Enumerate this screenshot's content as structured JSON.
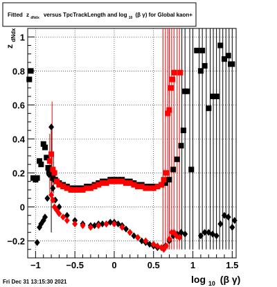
{
  "title_box": {
    "prefix": "Fitted",
    "z": "z",
    "z_sub": "dNdx",
    "mid": "versus TpcTrackLength and log",
    "log_sub": "10",
    "tail": "(β γ) for Global kaon+"
  },
  "footer": {
    "timestamp": "Fri Dec 31 13:15:30 2021"
  },
  "chart_data": {
    "type": "scatter",
    "xlim": [
      -1.1,
      1.55
    ],
    "ylim": [
      -0.3,
      1.05
    ],
    "x_ticks": [
      -1,
      -0.5,
      0,
      0.5,
      1,
      1.5
    ],
    "x_tick_labels": [
      "−1",
      "−0.5",
      "0",
      "0.5",
      "1",
      "1.5"
    ],
    "y_ticks": [
      -0.2,
      0,
      0.2,
      0.4,
      0.6,
      0.8,
      1
    ],
    "y_tick_labels": [
      "−0.2",
      "0",
      "0.2",
      "0.4",
      "0.6",
      "0.8",
      "1"
    ],
    "xlabel": {
      "main": "log",
      "sub": "10",
      "rest": "(β γ)"
    },
    "ylabel": {
      "main": "z",
      "sub": "dNdx"
    },
    "grid": true,
    "colors": {
      "black": "#000000",
      "red": "#ff0000"
    },
    "series": [
      {
        "marker": "square",
        "color": "black",
        "points": [
          [
            -1.08,
            0.75
          ],
          [
            -1.06,
            0.8
          ],
          [
            -1.03,
            0.17
          ],
          [
            -1.0,
            0.16
          ],
          [
            -0.98,
            0.17
          ],
          [
            -0.95,
            0.27
          ],
          [
            -0.93,
            0.25
          ],
          [
            -0.9,
            0.37
          ],
          [
            -0.88,
            0.35
          ],
          [
            -0.86,
            0.29
          ],
          [
            -0.84,
            0.23
          ],
          [
            -0.83,
            0.21
          ],
          [
            -0.82,
            0.2
          ],
          [
            -0.81,
            0.2
          ],
          [
            -0.79,
            0.2
          ],
          [
            -0.78,
            0.17
          ],
          [
            -0.75,
            0.16
          ],
          [
            -0.73,
            0.15
          ],
          [
            -0.7,
            0.14
          ],
          [
            -0.65,
            0.13
          ],
          [
            -0.6,
            0.12
          ],
          [
            -0.55,
            0.11
          ],
          [
            -0.5,
            0.11
          ],
          [
            -0.45,
            0.11
          ],
          [
            -0.4,
            0.11
          ],
          [
            -0.35,
            0.12
          ],
          [
            -0.3,
            0.12
          ],
          [
            -0.25,
            0.13
          ],
          [
            -0.2,
            0.14
          ],
          [
            -0.15,
            0.15
          ],
          [
            -0.1,
            0.15
          ],
          [
            -0.05,
            0.16
          ],
          [
            0.0,
            0.16
          ],
          [
            0.05,
            0.16
          ],
          [
            0.1,
            0.16
          ],
          [
            0.15,
            0.15
          ],
          [
            0.2,
            0.15
          ],
          [
            0.25,
            0.14
          ],
          [
            0.3,
            0.13
          ],
          [
            0.35,
            0.13
          ],
          [
            0.4,
            0.12
          ],
          [
            0.45,
            0.12
          ],
          [
            0.5,
            0.12
          ],
          [
            0.55,
            0.12
          ],
          [
            0.6,
            0.13
          ],
          [
            0.65,
            0.14
          ],
          [
            0.7,
            0.16
          ],
          [
            0.75,
            0.22
          ],
          [
            0.8,
            0.28
          ],
          [
            0.85,
            0.36
          ],
          [
            0.88,
            0.45
          ],
          [
            0.9,
            0.68
          ],
          [
            0.93,
            0.68
          ],
          [
            0.98,
            0.22
          ],
          [
            1.05,
            0.92
          ],
          [
            1.1,
            0.8
          ],
          [
            1.12,
            0.92
          ],
          [
            1.15,
            0.83
          ],
          [
            1.2,
            0.58
          ],
          [
            1.25,
            0.65
          ],
          [
            1.3,
            0.65
          ],
          [
            1.35,
            0.95
          ],
          [
            1.4,
            0.87
          ],
          [
            1.45,
            0.89
          ],
          [
            1.48,
            0.84
          ],
          [
            1.5,
            0.84
          ]
        ]
      },
      {
        "marker": "diamond",
        "color": "black",
        "points": [
          [
            -0.98,
            -0.21
          ],
          [
            -0.95,
            -0.12
          ],
          [
            -0.93,
            -0.1
          ],
          [
            -0.9,
            -0.08
          ],
          [
            -0.88,
            -0.06
          ],
          [
            -0.85,
            0.05
          ],
          [
            -0.83,
            0.19
          ],
          [
            -0.8,
            0.47
          ],
          [
            -0.78,
            0.11
          ],
          [
            -0.75,
            0.04
          ],
          [
            -0.7,
            0.0
          ],
          [
            -0.6,
            -0.05
          ],
          [
            -0.5,
            -0.08
          ],
          [
            -0.4,
            -0.1
          ],
          [
            -0.3,
            -0.11
          ],
          [
            -0.25,
            -0.11
          ],
          [
            -0.2,
            -0.1
          ],
          [
            -0.15,
            -0.1
          ],
          [
            -0.1,
            -0.1
          ],
          [
            -0.05,
            -0.09
          ],
          [
            0.0,
            -0.09
          ],
          [
            0.05,
            -0.1
          ],
          [
            0.1,
            -0.11
          ],
          [
            0.15,
            -0.13
          ],
          [
            0.2,
            -0.15
          ],
          [
            0.25,
            -0.17
          ],
          [
            0.3,
            -0.18
          ],
          [
            0.35,
            -0.2
          ],
          [
            0.4,
            -0.21
          ],
          [
            0.45,
            -0.22
          ],
          [
            0.5,
            -0.23
          ],
          [
            0.55,
            -0.24
          ],
          [
            0.6,
            -0.24
          ],
          [
            0.65,
            -0.23
          ],
          [
            0.7,
            -0.2
          ],
          [
            0.75,
            -0.17
          ],
          [
            0.8,
            -0.16
          ],
          [
            0.85,
            -0.15
          ],
          [
            0.9,
            -0.16
          ],
          [
            1.1,
            -0.17
          ],
          [
            1.15,
            -0.15
          ],
          [
            1.2,
            -0.15
          ],
          [
            1.25,
            -0.16
          ],
          [
            1.3,
            -0.17
          ],
          [
            1.35,
            -0.1
          ],
          [
            1.4,
            -0.05
          ],
          [
            1.45,
            -0.06
          ],
          [
            1.5,
            -0.12
          ],
          [
            1.53,
            -0.08
          ]
        ]
      },
      {
        "marker": "square",
        "color": "red",
        "points": [
          [
            -0.82,
            0.27
          ],
          [
            -0.8,
            0.31
          ],
          [
            -0.78,
            0.22
          ],
          [
            -0.76,
            0.2
          ],
          [
            -0.73,
            0.15
          ],
          [
            -0.7,
            0.13
          ],
          [
            -0.65,
            0.12
          ],
          [
            -0.6,
            0.11
          ],
          [
            -0.55,
            0.1
          ],
          [
            -0.5,
            0.1
          ],
          [
            -0.45,
            0.1
          ],
          [
            -0.4,
            0.1
          ],
          [
            -0.35,
            0.11
          ],
          [
            -0.3,
            0.11
          ],
          [
            -0.25,
            0.12
          ],
          [
            -0.2,
            0.13
          ],
          [
            -0.15,
            0.14
          ],
          [
            -0.1,
            0.14
          ],
          [
            -0.05,
            0.15
          ],
          [
            0.0,
            0.15
          ],
          [
            0.05,
            0.15
          ],
          [
            0.1,
            0.15
          ],
          [
            0.15,
            0.14
          ],
          [
            0.2,
            0.14
          ],
          [
            0.25,
            0.13
          ],
          [
            0.3,
            0.12
          ],
          [
            0.35,
            0.12
          ],
          [
            0.4,
            0.11
          ],
          [
            0.45,
            0.11
          ],
          [
            0.5,
            0.11
          ],
          [
            0.55,
            0.12
          ],
          [
            0.6,
            0.13
          ],
          [
            0.63,
            0.16
          ],
          [
            0.66,
            0.2
          ],
          [
            0.68,
            0.55
          ],
          [
            0.7,
            0.57
          ],
          [
            0.72,
            0.7
          ],
          [
            0.74,
            0.75
          ],
          [
            0.76,
            0.79
          ],
          [
            0.84,
            0.79
          ]
        ]
      },
      {
        "marker": "diamond",
        "color": "red",
        "points": [
          [
            -0.8,
            0.07
          ],
          [
            -0.78,
            0.04
          ],
          [
            -0.76,
            0.0
          ],
          [
            -0.73,
            -0.02
          ],
          [
            -0.7,
            -0.04
          ],
          [
            -0.65,
            -0.06
          ],
          [
            -0.6,
            -0.08
          ],
          [
            -0.5,
            -0.1
          ],
          [
            -0.4,
            -0.11
          ],
          [
            -0.3,
            -0.12
          ],
          [
            -0.2,
            -0.11
          ],
          [
            -0.1,
            -0.1
          ],
          [
            0.0,
            -0.1
          ],
          [
            0.1,
            -0.12
          ],
          [
            0.2,
            -0.15
          ],
          [
            0.3,
            -0.18
          ],
          [
            0.4,
            -0.2
          ],
          [
            0.5,
            -0.22
          ],
          [
            0.55,
            -0.23
          ],
          [
            0.6,
            -0.24
          ],
          [
            0.63,
            -0.25
          ],
          [
            0.66,
            -0.23
          ],
          [
            0.7,
            -0.19
          ],
          [
            0.73,
            -0.15
          ],
          [
            0.76,
            -0.15
          ],
          [
            0.79,
            -0.17
          ],
          [
            0.83,
            -0.18
          ]
        ]
      }
    ],
    "error_bars": [
      {
        "x": -0.82,
        "lo": 0.08,
        "hi": 0.43,
        "color": "red"
      },
      {
        "x": -0.79,
        "lo": 0.05,
        "hi": 0.62,
        "color": "red"
      },
      {
        "x": -0.77,
        "lo": 0.08,
        "hi": 0.32,
        "color": "red"
      },
      {
        "x": -0.8,
        "lo": -0.15,
        "hi": 0.45,
        "color": "black"
      },
      {
        "x": 0.62,
        "lo": -0.25,
        "hi": 1.05,
        "color": "red"
      },
      {
        "x": 0.65,
        "lo": -0.25,
        "hi": 1.05,
        "color": "red"
      },
      {
        "x": 0.68,
        "lo": -0.25,
        "hi": 1.05,
        "color": "red"
      },
      {
        "x": 0.7,
        "lo": -0.25,
        "hi": 1.05,
        "color": "red"
      },
      {
        "x": 0.73,
        "lo": -0.25,
        "hi": 1.05,
        "color": "red"
      },
      {
        "x": 0.76,
        "lo": -0.25,
        "hi": 1.05,
        "color": "red"
      },
      {
        "x": 0.8,
        "lo": -0.25,
        "hi": 1.05,
        "color": "red"
      },
      {
        "x": 0.83,
        "lo": -0.25,
        "hi": 1.05,
        "color": "red"
      },
      {
        "x": 0.86,
        "lo": -0.25,
        "hi": 1.05,
        "color": "black"
      },
      {
        "x": 0.9,
        "lo": -0.25,
        "hi": 1.05,
        "color": "black"
      },
      {
        "x": 0.96,
        "lo": -0.25,
        "hi": 1.05,
        "color": "black"
      },
      {
        "x": 1.0,
        "lo": -0.25,
        "hi": 1.05,
        "color": "black"
      },
      {
        "x": 1.08,
        "lo": -0.25,
        "hi": 1.05,
        "color": "black"
      },
      {
        "x": 1.12,
        "lo": -0.25,
        "hi": 1.05,
        "color": "black"
      },
      {
        "x": 1.17,
        "lo": -0.25,
        "hi": 1.05,
        "color": "black"
      },
      {
        "x": 1.22,
        "lo": -0.25,
        "hi": 1.05,
        "color": "black"
      },
      {
        "x": 1.26,
        "lo": -0.25,
        "hi": 1.05,
        "color": "black"
      },
      {
        "x": 1.3,
        "lo": -0.25,
        "hi": 1.05,
        "color": "black"
      },
      {
        "x": 1.34,
        "lo": -0.25,
        "hi": 1.05,
        "color": "black"
      },
      {
        "x": 1.38,
        "lo": -0.25,
        "hi": 1.05,
        "color": "black"
      },
      {
        "x": 1.42,
        "lo": -0.25,
        "hi": 1.05,
        "color": "black"
      },
      {
        "x": 1.46,
        "lo": -0.25,
        "hi": 1.05,
        "color": "black"
      },
      {
        "x": 1.5,
        "lo": -0.25,
        "hi": 1.05,
        "color": "black"
      }
    ]
  }
}
